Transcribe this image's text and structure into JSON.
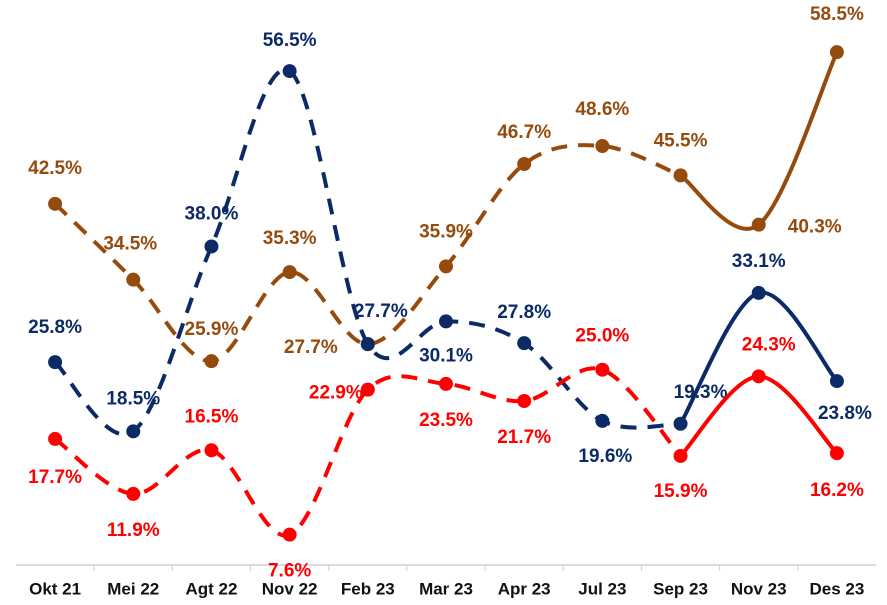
{
  "chart_data": {
    "type": "line",
    "categories": [
      "Okt 21",
      "Mei 22",
      "Agt 22",
      "Nov 22",
      "Feb 23",
      "Mar 23",
      "Apr 23",
      "Jul 23",
      "Sep 23",
      "Nov 23",
      "Des 23"
    ],
    "series": [
      {
        "color": "#964B0E",
        "values": [
          42.5,
          34.5,
          25.9,
          35.3,
          27.7,
          35.9,
          46.7,
          48.6,
          45.5,
          40.3,
          58.5
        ],
        "value_labels": [
          "42.5%",
          "34.5%",
          "25.9%",
          "35.3%",
          "27.7%",
          "35.9%",
          "46.7%",
          "48.6%",
          "45.5%",
          "40.3%",
          "58.5%"
        ]
      },
      {
        "color": "#0B2A66",
        "values": [
          25.8,
          18.5,
          38.0,
          56.5,
          27.7,
          30.1,
          27.8,
          19.6,
          19.3,
          33.1,
          23.8
        ],
        "value_labels": [
          "25.8%",
          "18.5%",
          "38.0%",
          "56.5%",
          "27.7%",
          "30.1%",
          "27.8%",
          "19.6%",
          "19.3%",
          "33.1%",
          "23.8%"
        ]
      },
      {
        "color": "#FF0000",
        "values": [
          17.7,
          11.9,
          16.5,
          7.6,
          22.9,
          23.5,
          21.7,
          25.0,
          15.9,
          24.3,
          16.2
        ],
        "value_labels": [
          "17.7%",
          "11.9%",
          "16.5%",
          "7.6%",
          "22.9%",
          "23.5%",
          "21.7%",
          "25.0%",
          "15.9%",
          "24.3%",
          "16.2%"
        ]
      }
    ],
    "dash_until": 8,
    "ylim": [
      4.4,
      64
    ]
  }
}
